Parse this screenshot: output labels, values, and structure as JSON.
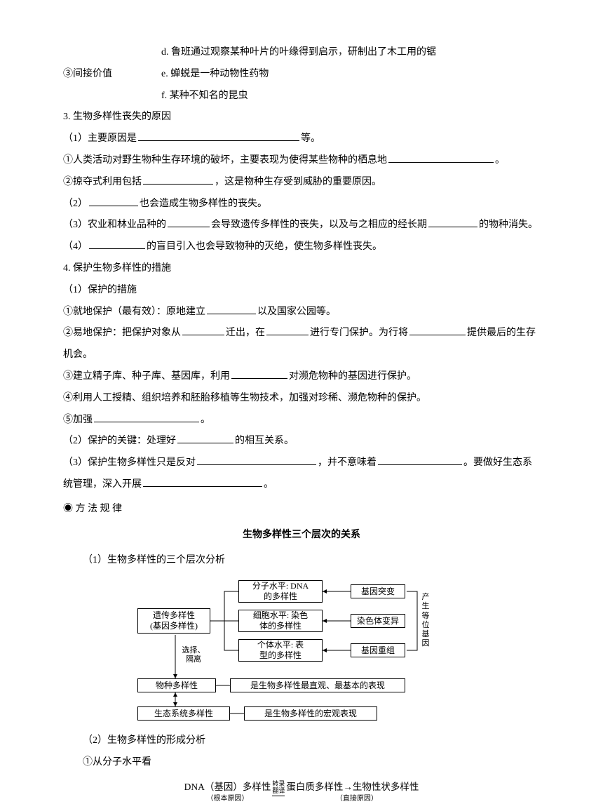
{
  "top": {
    "line_d": "d. 鲁班通过观察某种叶片的叶缘得到启示，研制出了木工用的锯",
    "row3_left": "③间接价值",
    "row3_right": "e. 蝉蜕是一种动物性药物",
    "line_f": "f. 某种不知名的昆虫"
  },
  "s3": {
    "heading": "3. 生物多样性丧失的原因",
    "l1a": "（1）主要原因是",
    "l1b": "等。",
    "l2a": "①人类活动对野生物种生存环境的破坏，主要表现为使得某些物种的栖息地",
    "l2b": "。",
    "l3a": "②掠夺式利用包括",
    "l3b": "，这是物种生存受到威胁的重要原因。",
    "l4a": "（2）",
    "l4b": "也会造成生物多样性的丧失。",
    "l5a": "（3）农业和林业品种的",
    "l5b": "会导致遗传多样性的丧失，以及与之相应的经长期",
    "l5c": "的物种消失。",
    "l6a": "（4）",
    "l6b": "的盲目引入也会导致物种的灭绝，使生物多样性丧失。"
  },
  "s4": {
    "heading": "4. 保护生物多样性的措施",
    "l1": "（1）保护的措施",
    "l2a": "①就地保护（最有效）：原地建立",
    "l2b": "以及国家公园等。",
    "l3a": "②易地保护：把保护对象从",
    "l3b": "迁出，在",
    "l3c": "进行专门保护。为行将",
    "l3d": "提供最后的生存机会。",
    "l4a": "③建立精子库、种子库、基因库，利用",
    "l4b": "对濒危物种的基因进行保护。",
    "l5": "④利用人工授精、组织培养和胚胎移植等生物技术，加强对珍稀、濒危物种的保护。",
    "l6a": "⑤加强",
    "l6b": "。",
    "l7a": "（2）保护的关键：处理好",
    "l7b": "的相互关系。",
    "l8a": "（3）保护生物多样性只是反对",
    "l8b": "，并不意味着",
    "l8c": "。要做好生态系统管理，深入开展",
    "l8d": "。"
  },
  "method": {
    "marker": "◉  方 法 规 律",
    "title": "生物多样性三个层次的关系",
    "l1": "（1）生物多样性的三个层次分析",
    "l2": "（2）生物多样性的形成分析",
    "l3": "①从分子水平看"
  },
  "diagram": {
    "nodes": {
      "genetic": "遗传多样性\n(基因多样性)",
      "mol": "分子水平: DNA\n的多样性",
      "cell": "细胞水平: 染色\n体的多样性",
      "indiv": "个体水平: 表\n型的多样性",
      "mut": "基因突变",
      "chrom": "染色体变异",
      "recomb": "基因重组",
      "species": "物种多样性",
      "species_r": "是生物多样性最直观、最基本的表现",
      "eco": "生态系统多样性",
      "eco_r": "是生物多样性的宏观表现"
    },
    "labels": {
      "sel": "选择、\n隔离",
      "allele": "产\n生\n等\n位\n基\n因"
    }
  },
  "formula": {
    "dna": "DNA（基因）多样性",
    "trans": "转录\n翻译",
    "protein": "蛋白质多样性→生物性状多样性",
    "sub1": "（根本原因）",
    "sub2": "（直接原因）"
  },
  "blanks": {
    "w60": 60,
    "w70": 70,
    "w80": 80,
    "w100": 100,
    "w120": 120,
    "w150": 150,
    "w230": 230
  }
}
